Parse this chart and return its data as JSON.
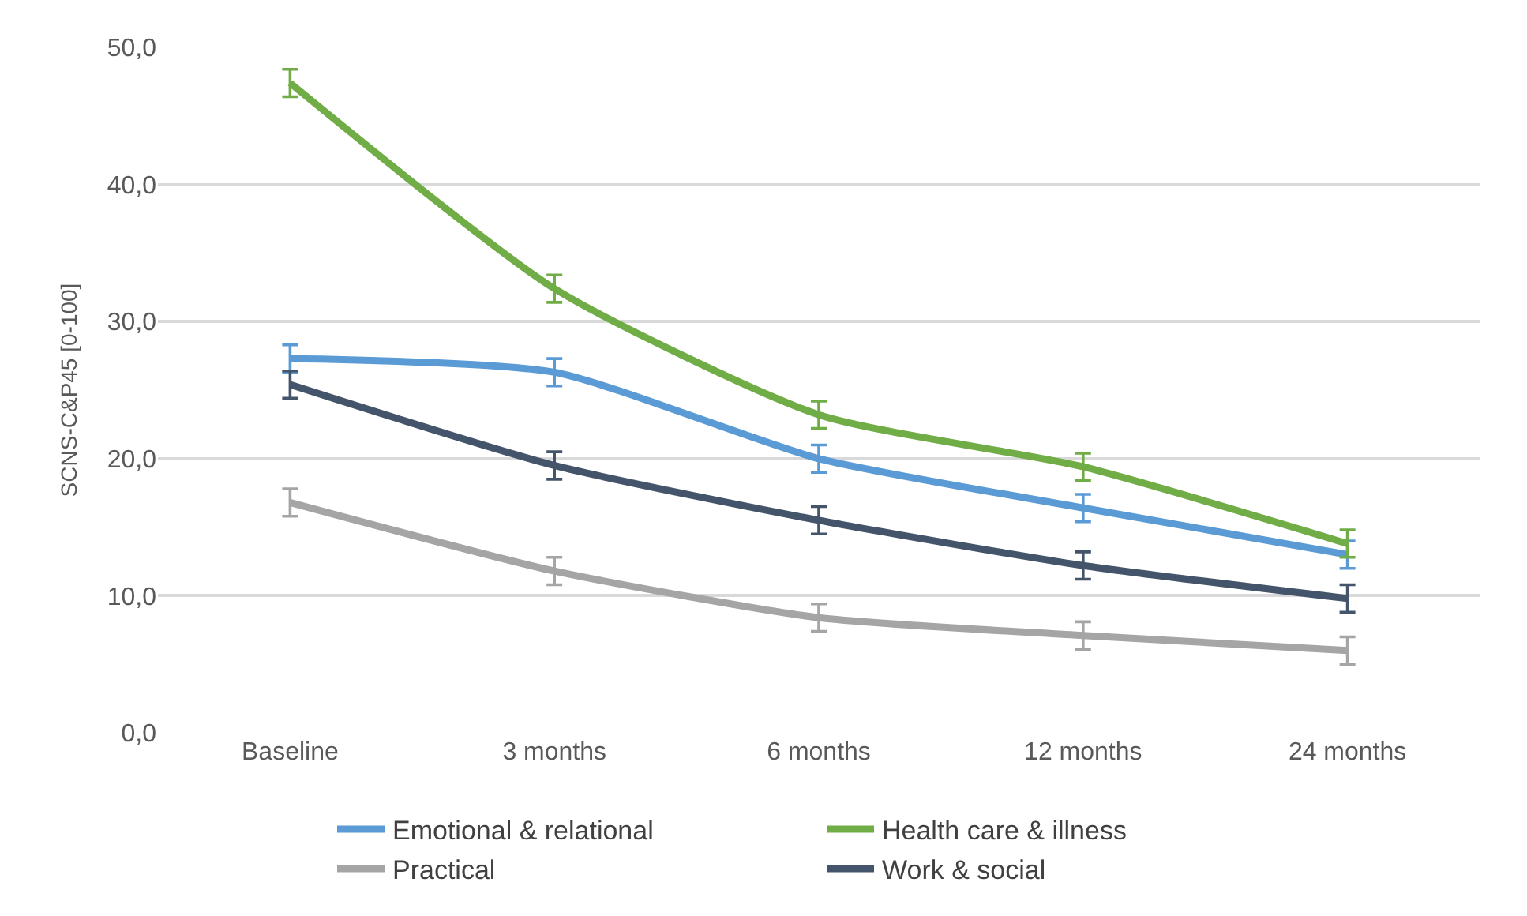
{
  "chart_data": {
    "type": "line",
    "ylabel": "SCNS-C&P45 [0-100]",
    "categories": [
      "Baseline",
      "3 months",
      "6 months",
      "12 months",
      "24 months"
    ],
    "series": [
      {
        "name": "Emotional & relational",
        "color": "#5b9bd5",
        "values": [
          27.3,
          26.3,
          20.0,
          16.4,
          13.0
        ],
        "errors": [
          1.0,
          1.0,
          1.0,
          1.0,
          1.0
        ]
      },
      {
        "name": "Health care & illness",
        "color": "#70ad47",
        "values": [
          47.4,
          32.4,
          23.2,
          19.4,
          13.8
        ],
        "errors": [
          1.0,
          1.0,
          1.0,
          1.0,
          1.0
        ]
      },
      {
        "name": "Practical",
        "color": "#a5a5a5",
        "values": [
          16.8,
          11.8,
          8.4,
          7.1,
          6.0
        ],
        "errors": [
          1.0,
          1.0,
          1.0,
          1.0,
          1.0
        ]
      },
      {
        "name": "Work & social",
        "color": "#44546a",
        "values": [
          25.4,
          19.5,
          15.5,
          12.2,
          9.8
        ],
        "errors": [
          1.0,
          1.0,
          1.0,
          1.0,
          1.0
        ]
      }
    ],
    "ylim": [
      0,
      50
    ],
    "yticks": [
      {
        "value": 0,
        "label": "0,0"
      },
      {
        "value": 10,
        "label": "10,0"
      },
      {
        "value": 20,
        "label": "20,0"
      },
      {
        "value": 30,
        "label": "30,0"
      },
      {
        "value": 40,
        "label": "40,0"
      },
      {
        "value": 50,
        "label": "50,0"
      }
    ],
    "grid": "y",
    "legend": "bottom",
    "marker": "none",
    "line_style": "solid"
  }
}
